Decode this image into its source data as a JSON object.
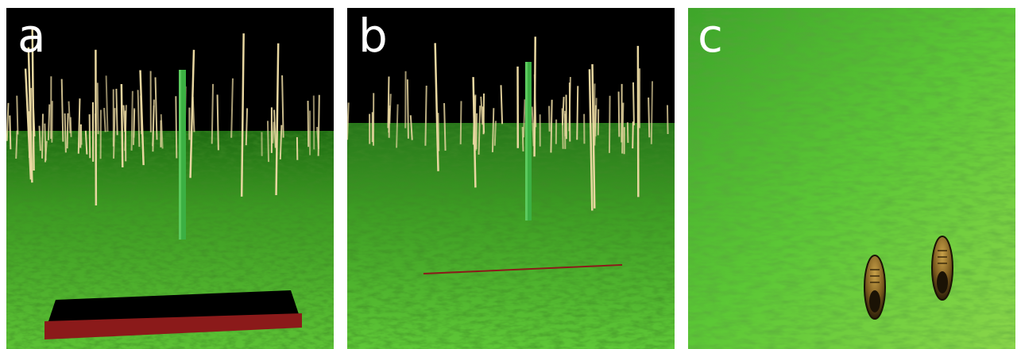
{
  "panels": [
    {
      "label": "a"
    },
    {
      "label": "b"
    },
    {
      "label": "c"
    }
  ],
  "colors": {
    "sky": "#000000",
    "grass_light": "#6fcf3a",
    "grass_dark": "#1f6b12",
    "pole_green": "#3cb043",
    "reed": "#e8d7a0",
    "beam_red": "#8b1a1a"
  }
}
